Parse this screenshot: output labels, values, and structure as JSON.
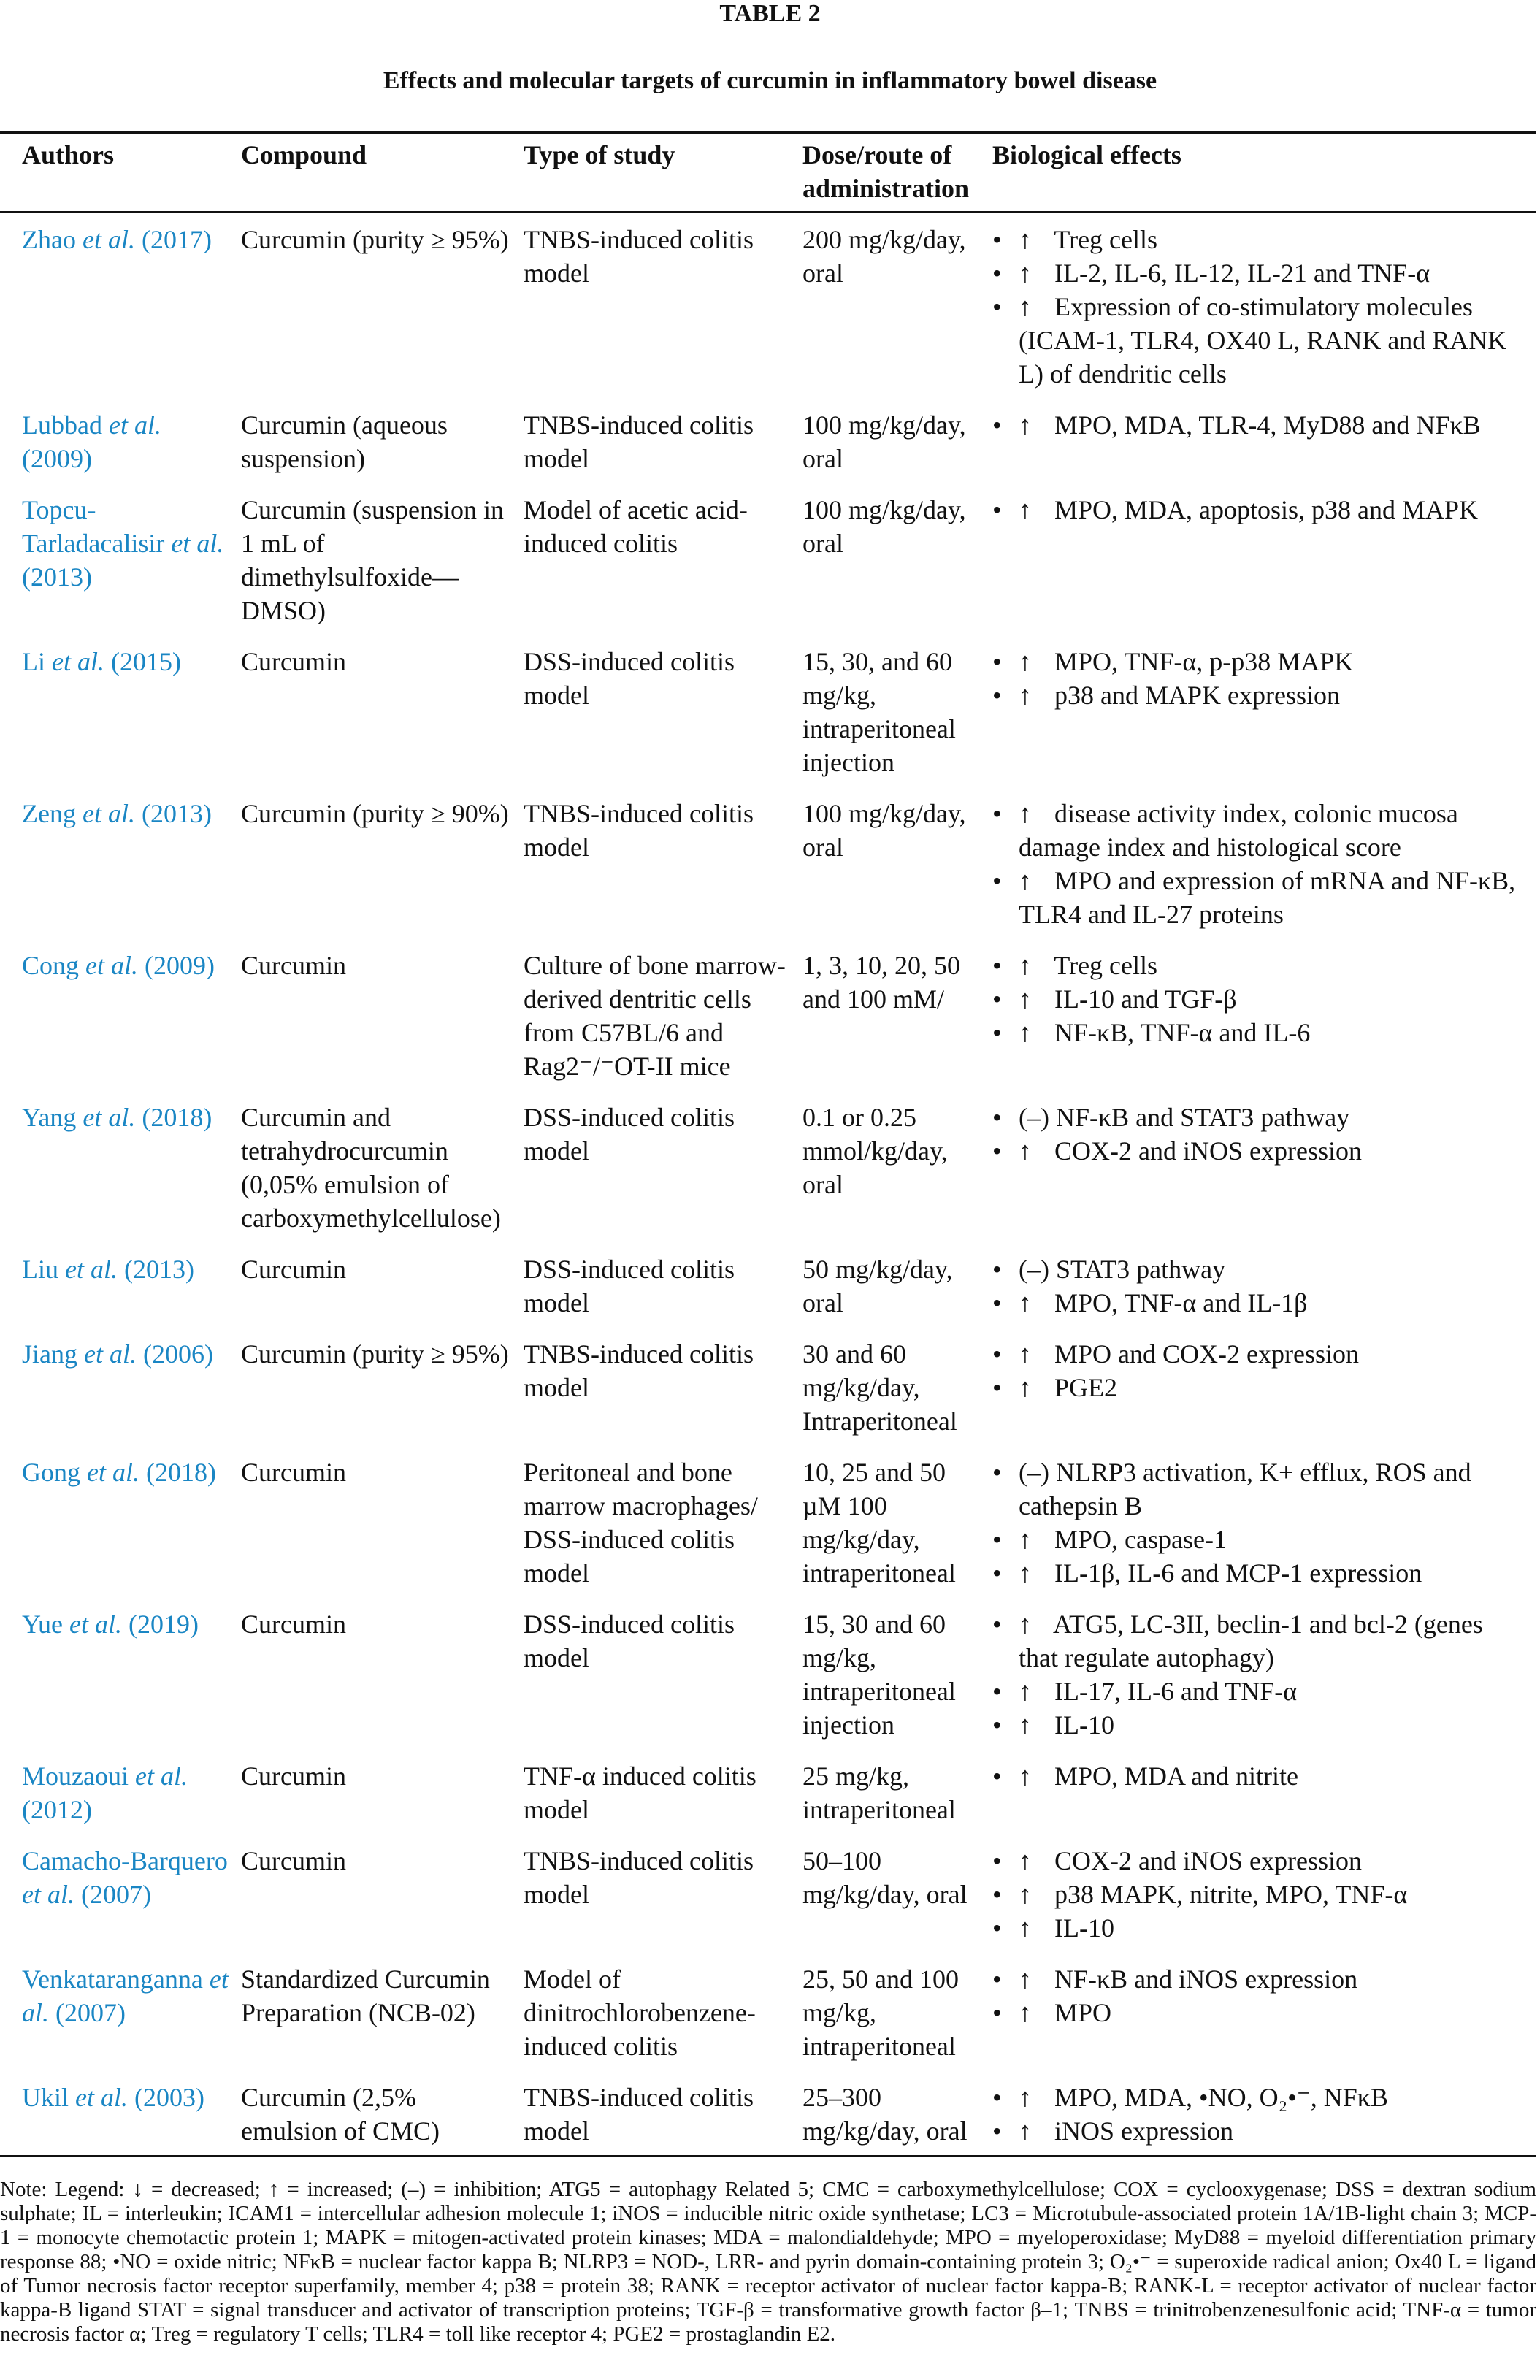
{
  "table_label": "TABLE 2",
  "caption": "Effects and molecular targets of curcumin in inflammatory bowel disease",
  "headers": [
    "Authors",
    "Compound",
    "Type of study",
    "Dose/route of administration",
    "Biological effects"
  ],
  "rows": [
    {
      "author": "Zhao",
      "etal": "et al.",
      "year": "(2017)",
      "compound": "Curcumin (purity ≥ 95%)",
      "study": "TNBS-induced colitis model",
      "dose": "200 mg/kg/day, oral",
      "effects": [
        {
          "p": "↑",
          "t": "Treg cells"
        },
        {
          "p": "↑",
          "t": "IL-2, IL-6, IL-12, IL-21 and TNF-α"
        },
        {
          "p": "↑",
          "t": "Expression of co-stimulatory molecules (ICAM-1, TLR4, OX40 L, RANK and RANK L) of dendritic cells"
        }
      ]
    },
    {
      "author": "Lubbad",
      "etal": "et al.",
      "year": "(2009)",
      "compound": "Curcumin (aqueous suspension)",
      "study": "TNBS-induced colitis model",
      "dose": "100 mg/kg/day, oral",
      "effects": [
        {
          "p": "↑",
          "t": "MPO, MDA, TLR-4, MyD88 and NFκB"
        }
      ]
    },
    {
      "author": "Topcu-Tarladacalisir",
      "etal": "et al.",
      "year": "(2013)",
      "compound": "Curcumin (suspension in 1 mL of dimethylsulfoxide—DMSO)",
      "study": "Model of acetic acid-induced colitis",
      "dose": "100 mg/kg/day, oral",
      "effects": [
        {
          "p": "↑",
          "t": "MPO, MDA, apoptosis, p38 and MAPK"
        }
      ]
    },
    {
      "author": "Li",
      "etal": "et al.",
      "year": "(2015)",
      "compound": "Curcumin",
      "study": "DSS-induced colitis model",
      "dose": "15, 30, and 60 mg/kg, intraperitoneal injection",
      "effects": [
        {
          "p": "↑",
          "t": "MPO, TNF-α, p-p38 MAPK"
        },
        {
          "p": "↑",
          "t": "p38 and MAPK expression"
        }
      ]
    },
    {
      "author": "Zeng",
      "etal": "et al.",
      "year": "(2013)",
      "compound": "Curcumin (purity ≥ 90%)",
      "study": "TNBS-induced colitis model",
      "dose": "100 mg/kg/day, oral",
      "effects": [
        {
          "p": "↑",
          "t": "disease activity index, colonic mucosa damage index and histological score"
        },
        {
          "p": "↑",
          "t": "MPO and expression of mRNA and NF-κB, TLR4 and IL-27 proteins"
        }
      ]
    },
    {
      "author": "Cong",
      "etal": "et al.",
      "year": "(2009)",
      "compound": "Curcumin",
      "study": "Culture of bone marrow-derived dentritic cells from C57BL/6 and Rag2⁻/⁻OT-II mice",
      "dose": "1, 3, 10, 20, 50 and 100 mM/",
      "effects": [
        {
          "p": "↑",
          "t": "Treg cells"
        },
        {
          "p": "↑",
          "t": "IL-10 and TGF-β"
        },
        {
          "p": "↑",
          "t": "NF-κB, TNF-α and IL-6"
        }
      ]
    },
    {
      "author": "Yang",
      "etal": "et al.",
      "year": "(2018)",
      "compound": "Curcumin and tetrahydrocurcumin (0,05% emulsion of carboxymethylcellulose)",
      "study": "DSS-induced colitis model",
      "dose": "0.1 or 0.25 mmol/kg/day, oral",
      "effects": [
        {
          "p": "(–)",
          "t": "NF-κB and STAT3 pathway"
        },
        {
          "p": "↑",
          "t": "COX-2 and iNOS expression"
        }
      ]
    },
    {
      "author": "Liu",
      "etal": "et al.",
      "year": "(2013)",
      "compound": "Curcumin",
      "study": "DSS-induced colitis model",
      "dose": "50 mg/kg/day, oral",
      "effects": [
        {
          "p": "(–)",
          "t": "STAT3 pathway"
        },
        {
          "p": "↑",
          "t": "MPO, TNF-α and IL-1β"
        }
      ]
    },
    {
      "author": "Jiang",
      "etal": "et al.",
      "year": "(2006)",
      "compound": "Curcumin (purity ≥ 95%)",
      "study": "TNBS-induced colitis model",
      "dose": "30 and 60 mg/kg/day, Intraperitoneal",
      "effects": [
        {
          "p": "↑",
          "t": "MPO and COX-2 expression"
        },
        {
          "p": "↑",
          "t": "PGE2"
        }
      ]
    },
    {
      "author": "Gong",
      "etal": "et al.",
      "year": "(2018)",
      "compound": "Curcumin",
      "study": "Peritoneal and bone marrow macrophages/ DSS-induced colitis model",
      "dose": "10, 25 and 50 µM 100 mg/kg/day, intraperitoneal",
      "effects": [
        {
          "p": "(–)",
          "t": "NLRP3 activation, K+ efflux, ROS and cathepsin B"
        },
        {
          "p": "↑",
          "t": "MPO, caspase-1"
        },
        {
          "p": "↑",
          "t": "IL-1β, IL-6 and MCP-1 expression"
        }
      ]
    },
    {
      "author": "Yue",
      "etal": "et al.",
      "year": "(2019)",
      "compound": "Curcumin",
      "study": "DSS-induced colitis model",
      "dose": "15, 30 and 60 mg/kg, intraperitoneal injection",
      "effects": [
        {
          "p": "↑",
          "t": "ATG5, LC-3II, beclin-1 and bcl-2 (genes that regulate autophagy)"
        },
        {
          "p": "↑",
          "t": "IL-17, IL-6 and TNF-α"
        },
        {
          "p": "↑",
          "t": "IL-10"
        }
      ]
    },
    {
      "author": "Mouzaoui",
      "etal": "et al.",
      "year": "(2012)",
      "compound": "Curcumin",
      "study": "TNF-α induced colitis model",
      "dose": "25 mg/kg, intraperitoneal",
      "effects": [
        {
          "p": "↑",
          "t": "MPO, MDA and nitrite"
        }
      ]
    },
    {
      "author": "Camacho-Barquero",
      "etal": "et al.",
      "year": "(2007)",
      "compound": "Curcumin",
      "study": "TNBS-induced colitis model",
      "dose": "50–100 mg/kg/day, oral",
      "effects": [
        {
          "p": "↑",
          "t": "COX-2 and iNOS expression"
        },
        {
          "p": "↑",
          "t": "p38 MAPK, nitrite, MPO, TNF-α"
        },
        {
          "p": "↑",
          "t": "IL-10"
        }
      ]
    },
    {
      "author": "Venkataranganna",
      "etal": "et al.",
      "year": "(2007)",
      "compound": "Standardized Curcumin Preparation (NCB-02)",
      "study": "Model of dinitrochlorobenzene-induced colitis",
      "dose": "25, 50 and 100 mg/kg, intraperitoneal",
      "effects": [
        {
          "p": "↑",
          "t": "NF-κB and iNOS expression"
        },
        {
          "p": "↑",
          "t": "MPO"
        }
      ]
    },
    {
      "author": "Ukil",
      "etal": "et al.",
      "year": "(2003)",
      "compound": "Curcumin (2,5% emulsion of CMC)",
      "study": "TNBS-induced colitis model",
      "dose": "25–300 mg/kg/day, oral",
      "effects": [
        {
          "p": "↑",
          "t": "MPO, MDA, •NO, O₂•⁻, NFκB"
        },
        {
          "p": "↑",
          "t": "iNOS expression"
        }
      ]
    }
  ],
  "note": "Note: Legend: ↓ = decreased; ↑ = increased; (–) = inhibition; ATG5 = autophagy Related 5; CMC = carboxymethylcellulose; COX = cyclooxygenase; DSS = dextran sodium sulphate; IL = interleukin; ICAM1 = intercellular adhesion molecule 1; iNOS = inducible nitric oxide synthetase; LC3 = Microtubule-associated protein 1A/1B-light chain 3; MCP-1 = monocyte chemotactic protein 1; MAPK = mitogen-activated protein kinases; MDA = malondialdehyde; MPO = myeloperoxidase; MyD88 = myeloid differentiation primary response 88; •NO = oxide nitric; NFκB = nuclear factor kappa B; NLRP3 = NOD-, LRR- and pyrin domain-containing protein 3; O₂•⁻ = superoxide radical anion; Ox40 L = ligand of Tumor necrosis factor receptor superfamily, member 4; p38 = protein 38; RANK = receptor activator of nuclear factor kappa-B; RANK-L = receptor activator of nuclear factor kappa-B ligand STAT = signal transducer and activator of transcription proteins; TGF-β = transformative growth factor β–1; TNBS = trinitrobenzenesulfonic acid; TNF-α = tumor necrosis factor α; Treg = regulatory T cells; TLR4 = toll like receptor 4; PGE2 = prostaglandin E2.",
  "colors": {
    "author_link": "#1a86c4",
    "text": "#111111"
  }
}
